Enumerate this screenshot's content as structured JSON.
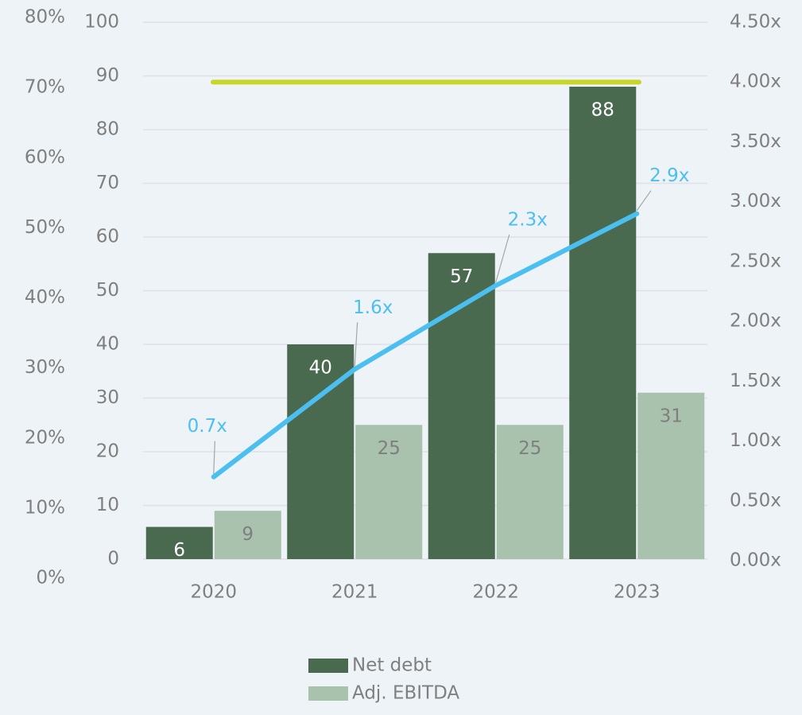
{
  "chart_data": {
    "type": "bar",
    "categories": [
      "2020",
      "2021",
      "2022",
      "2023"
    ],
    "series": [
      {
        "name": "Net debt",
        "color": "#4a6a50",
        "values": [
          6,
          40,
          57,
          88
        ]
      },
      {
        "name": "Adj. EBITDA",
        "color": "#a9c2ad",
        "values": [
          9,
          25,
          25,
          31
        ]
      },
      {
        "type": "line",
        "axis": "y2",
        "color": "#4bbff0",
        "values": [
          0.7,
          1.6,
          2.3,
          2.9
        ],
        "value_labels": [
          "0.7x",
          "1.6x",
          "2.3x",
          "2.9x"
        ]
      }
    ],
    "reference_line": {
      "value": 4.0,
      "axis": "y2",
      "color": "#c8d62b"
    },
    "ylim": [
      0,
      100
    ],
    "yticks": [
      0,
      10,
      20,
      30,
      40,
      50,
      60,
      70,
      80,
      90,
      100
    ],
    "y2lim": [
      0,
      4.5
    ],
    "y2ticks": [
      {
        "value": 0,
        "label": "0.00x"
      },
      {
        "value": 0.5,
        "label": "0.50x"
      },
      {
        "value": 1,
        "label": "1.00x"
      },
      {
        "value": 1.5,
        "label": "1.50x"
      },
      {
        "value": 2,
        "label": "2.00x"
      },
      {
        "value": 2.5,
        "label": "2.50x"
      },
      {
        "value": 3,
        "label": "3.00x"
      },
      {
        "value": 3.5,
        "label": "3.50x"
      },
      {
        "value": 4,
        "label": "4.00x"
      },
      {
        "value": 4.5,
        "label": "4.50x"
      }
    ],
    "y3lim": [
      0,
      80
    ],
    "y3ticks": [
      {
        "value": 0,
        "label": "0%"
      },
      {
        "value": 10,
        "label": "10%"
      },
      {
        "value": 20,
        "label": "20%"
      },
      {
        "value": 30,
        "label": "30%"
      },
      {
        "value": 40,
        "label": "40%"
      },
      {
        "value": 50,
        "label": "50%"
      },
      {
        "value": 60,
        "label": "60%"
      },
      {
        "value": 70,
        "label": "70%"
      },
      {
        "value": 80,
        "label": "80%"
      }
    ],
    "grid": true,
    "legend": "bottom"
  }
}
